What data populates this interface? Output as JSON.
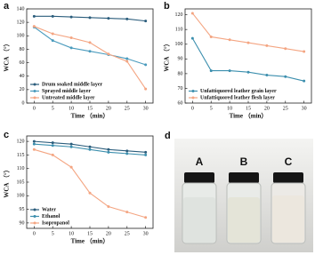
{
  "chart_data": [
    {
      "type": "line",
      "panel": "a",
      "x_label": "Time （min）",
      "y_label": "WCA （°）",
      "x": [
        0,
        5,
        10,
        15,
        20,
        25,
        30
      ],
      "xlim": [
        -2,
        32
      ],
      "xticks": [
        0,
        5,
        10,
        15,
        20,
        25,
        30
      ],
      "ylim": [
        0,
        140
      ],
      "yticks": [
        0,
        20,
        40,
        60,
        80,
        100,
        120,
        140
      ],
      "legend": "lower left",
      "series": [
        {
          "name": "Drum soaked middle layer",
          "color": "#2b5d7c",
          "values": [
            129,
            129,
            128,
            127,
            126,
            125,
            122
          ]
        },
        {
          "name": "Sprayed middle layer",
          "color": "#4a9bbd",
          "values": [
            113,
            93,
            82,
            77,
            72,
            66,
            57
          ]
        },
        {
          "name": "Untreated middle layer",
          "color": "#f4a582",
          "values": [
            114,
            103,
            97,
            90,
            73,
            62,
            21
          ]
        }
      ]
    },
    {
      "type": "line",
      "panel": "b",
      "x_label": "Time （min）",
      "y_label": "WCA （°）",
      "x": [
        0,
        5,
        10,
        15,
        20,
        25,
        30
      ],
      "xlim": [
        -2,
        32
      ],
      "xticks": [
        0,
        5,
        10,
        15,
        20,
        25,
        30
      ],
      "ylim": [
        60,
        124
      ],
      "yticks": [
        60,
        70,
        80,
        90,
        100,
        110,
        120
      ],
      "legend": "lower left",
      "series": [
        {
          "name": "Unfattiquored leather grain layer",
          "color": "#3c8fae",
          "values": [
            104,
            82,
            82,
            81,
            79,
            78,
            75
          ]
        },
        {
          "name": "Unfattiquored leather flesh layer",
          "color": "#f4a582",
          "values": [
            121,
            105,
            103,
            101,
            99,
            97,
            95
          ]
        }
      ]
    },
    {
      "type": "line",
      "panel": "c",
      "x_label": "Time （min）",
      "y_label": "WCA （°）",
      "x": [
        0,
        5,
        10,
        15,
        20,
        25,
        30
      ],
      "xlim": [
        -2,
        32
      ],
      "xticks": [
        0,
        5,
        10,
        15,
        20,
        25,
        30
      ],
      "ylim": [
        88,
        122
      ],
      "yticks": [
        90,
        95,
        100,
        105,
        110,
        115,
        120
      ],
      "legend": "lower left",
      "series": [
        {
          "name": "Water",
          "color": "#2b5d7c",
          "values": [
            120,
            119.5,
            119,
            118,
            117,
            116.5,
            116
          ]
        },
        {
          "name": "Ethanol",
          "color": "#3c8fae",
          "values": [
            119,
            118.5,
            118,
            117,
            116,
            115.5,
            115
          ]
        },
        {
          "name": "Isopropanol",
          "color": "#f4a582",
          "values": [
            117,
            115,
            110.5,
            101,
            96,
            94,
            92
          ]
        }
      ]
    }
  ],
  "photo": {
    "panel": "d",
    "labels": [
      "A",
      "B",
      "C"
    ]
  }
}
